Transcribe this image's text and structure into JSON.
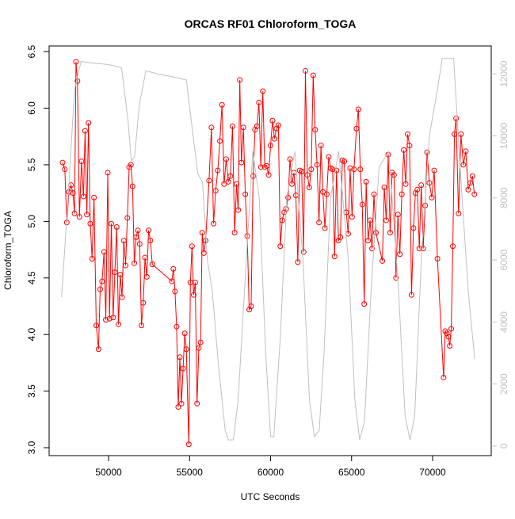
{
  "chart_data": {
    "type": "line",
    "title": "ORCAS RF01 Chloroform_TOGA",
    "x_label": "UTC Seconds",
    "y_label": "Chloroform_TOGA",
    "xlim": [
      46330,
      73620
    ],
    "xticks": [
      50000,
      55000,
      60000,
      65000,
      70000
    ],
    "ylim": [
      2.93,
      6.55
    ],
    "yticks": [
      {
        "value": 3,
        "label": "3.0"
      },
      3.5,
      {
        "value": 4,
        "label": "4.0"
      },
      4.5,
      {
        "value": 5,
        "label": "5.0"
      },
      5.5,
      {
        "value": 6,
        "label": "6.0"
      },
      6.5
    ],
    "y2lim": [
      -308,
      12900
    ],
    "y2ticks": [
      0,
      2000,
      4000,
      6000,
      8000,
      10000,
      12000
    ],
    "series": [
      {
        "color": "#ff0000",
        "markers": true,
        "x": [
          47160,
          47300,
          47420,
          47550,
          47680,
          47800,
          47900,
          47990,
          48080,
          48200,
          48330,
          48450,
          48550,
          48660,
          48760,
          48870,
          48980,
          49100,
          49240,
          49380,
          49480,
          49600,
          49720,
          49830,
          49950,
          50060,
          50170,
          50280,
          50390,
          50500,
          50610,
          50720,
          50830,
          50940,
          51050,
          51160,
          51270,
          51380,
          51480,
          51590,
          51700,
          51810,
          51920,
          52030,
          52140,
          52250,
          52360,
          52470,
          52580,
          52700,
          53900,
          54000,
          54100,
          54200,
          54300,
          54400,
          54500,
          54600,
          54700,
          54800,
          54950,
          55050,
          55150,
          55250,
          55350,
          55460,
          55570,
          55680,
          55780,
          55880,
          55990,
          56200,
          56350,
          56480,
          56610,
          56740,
          56870,
          57000,
          57130,
          57260,
          57390,
          57520,
          57650,
          57780,
          57900,
          58000,
          58100,
          58200,
          58320,
          58440,
          58560,
          58680,
          58800,
          58920,
          59040,
          59160,
          59280,
          59400,
          59520,
          59640,
          59760,
          59880,
          60000,
          60120,
          60240,
          60360,
          60480,
          60600,
          60720,
          60840,
          60960,
          61080,
          61200,
          61320,
          61440,
          61560,
          61680,
          61800,
          61920,
          62040,
          62150,
          62270,
          62390,
          62510,
          62630,
          62750,
          62870,
          62990,
          63110,
          63230,
          63350,
          63470,
          63590,
          63710,
          63830,
          63950,
          64070,
          64190,
          64310,
          64430,
          64550,
          64670,
          64790,
          64910,
          65030,
          65150,
          65300,
          65420,
          65540,
          65660,
          65780,
          65900,
          66020,
          66140,
          66260,
          66380,
          66500,
          66900,
          67020,
          67140,
          67260,
          67380,
          67500,
          67620,
          67740,
          67860,
          67980,
          68100,
          68220,
          68340,
          68460,
          68580,
          68700,
          68820,
          68940,
          69060,
          69180,
          69300,
          69420,
          69540,
          69660,
          69800,
          69950,
          70100,
          70300,
          70680,
          70780,
          70880,
          70980,
          71060,
          71150,
          71250,
          71350,
          71450,
          71600,
          71750,
          71900,
          72050,
          72200,
          72330,
          72460,
          72580
        ],
        "values": [
          5.52,
          5.46,
          4.99,
          5.26,
          5.32,
          5.25,
          5.07,
          6.41,
          6.24,
          5.04,
          5.53,
          5.22,
          5.8,
          5.06,
          5.87,
          4.98,
          4.67,
          5.21,
          4.08,
          3.87,
          4.4,
          4.47,
          4.73,
          4.13,
          5.43,
          4.14,
          4.98,
          4.15,
          4.55,
          4.95,
          4.09,
          4.53,
          4.33,
          4.83,
          4.61,
          5.03,
          5.48,
          5.5,
          5.31,
          4.63,
          4.86,
          4.92,
          4.8,
          4.08,
          4.28,
          4.68,
          4.51,
          4.92,
          4.83,
          4.62,
          4.47,
          4.58,
          4.38,
          4.07,
          3.36,
          3.8,
          3.39,
          3.7,
          4.01,
          3.87,
          3.03,
          4.46,
          4.78,
          4.35,
          4.46,
          3.39,
          3.88,
          3.93,
          4.9,
          4.72,
          4.83,
          5.36,
          5.83,
          4.98,
          5.27,
          5.45,
          5.71,
          6.03,
          5.33,
          5.55,
          5.35,
          5.4,
          5.84,
          4.9,
          5.33,
          5.1,
          6.25,
          5.52,
          5.83,
          5.24,
          4.87,
          4.22,
          4.25,
          5.4,
          5.81,
          5.84,
          6.05,
          5.48,
          6.15,
          5.48,
          5.49,
          5.41,
          5.67,
          5.89,
          5.73,
          5.82,
          5.85,
          4.78,
          5.01,
          5.08,
          5.11,
          5.21,
          5.55,
          5.33,
          5.43,
          5.23,
          4.64,
          5.45,
          5.44,
          4.73,
          6.33,
          5.41,
          5.3,
          5.46,
          6.29,
          5.81,
          5.5,
          4.99,
          5.67,
          5.26,
          4.94,
          5.24,
          5.57,
          5.47,
          5.46,
          4.69,
          5.45,
          4.83,
          4.86,
          5.54,
          5.53,
          5.08,
          4.89,
          5.47,
          5.04,
          5.46,
          5.82,
          5.99,
          5.46,
          5.15,
          4.27,
          5.35,
          4.83,
          5.01,
          4.76,
          5.24,
          4.9,
          4.65,
          5.3,
          5.01,
          5.59,
          4.9,
          5.43,
          5.41,
          4.5,
          5.06,
          4.71,
          5.24,
          5.63,
          5.33,
          5.77,
          5.67,
          4.35,
          4.94,
          5.25,
          5.28,
          4.76,
          5.32,
          4.76,
          5.14,
          5.61,
          5.34,
          5.21,
          5.45,
          4.67,
          3.62,
          4.03,
          4.01,
          3.98,
          3.9,
          4.05,
          4.78,
          5.77,
          5.91,
          5.07,
          5.77,
          5.5,
          5.62,
          5.28,
          5.34,
          5.4,
          5.24
        ]
      },
      {
        "color": "#c0c0c0",
        "axis": "y2",
        "markers": false,
        "x": [
          47100,
          47500,
          47900,
          48300,
          49000,
          50000,
          50800,
          51200,
          51400,
          51600,
          51900,
          52300,
          53000,
          54000,
          54800,
          55100,
          55500,
          55800,
          56100,
          56400,
          56800,
          57200,
          57400,
          57700,
          58000,
          58500,
          58900,
          59300,
          59700,
          60000,
          60200,
          60600,
          61000,
          61500,
          62000,
          62400,
          62700,
          63000,
          63300,
          63700,
          64200,
          64800,
          65200,
          65500,
          65800,
          66200,
          66700,
          67300,
          67900,
          68300,
          68600,
          68900,
          69300,
          69800,
          70300,
          70600,
          71300,
          71700,
          72200,
          72600
        ],
        "values": [
          4800,
          8000,
          11500,
          12400,
          12350,
          12300,
          12200,
          10500,
          9200,
          9300,
          11000,
          12100,
          12000,
          11900,
          11800,
          10500,
          8800,
          8500,
          6000,
          5000,
          2500,
          500,
          200,
          200,
          1500,
          6000,
          9500,
          8000,
          3000,
          300,
          300,
          3500,
          8000,
          9500,
          6000,
          1500,
          300,
          500,
          3000,
          8000,
          9500,
          6000,
          1500,
          200,
          800,
          5000,
          9000,
          9500,
          5000,
          1000,
          200,
          1000,
          6000,
          10000,
          11500,
          12500,
          12500,
          9000,
          5000,
          2800
        ]
      }
    ]
  }
}
